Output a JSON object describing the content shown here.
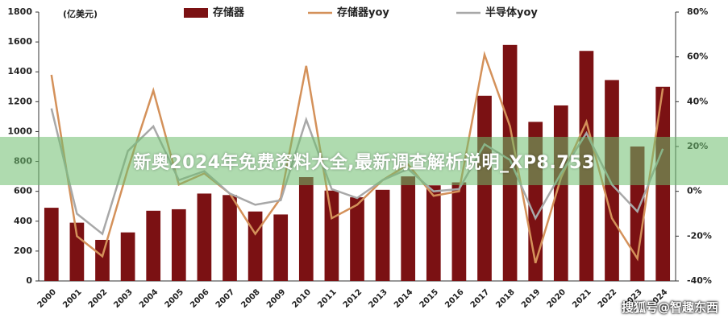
{
  "chart_data": {
    "type": "bar_line",
    "y_unit_label": "(亿美元)",
    "categories": [
      "2000",
      "2001",
      "2002",
      "2003",
      "2004",
      "2005",
      "2006",
      "2007",
      "2008",
      "2009",
      "2010",
      "2011",
      "2012",
      "2013",
      "2014",
      "2015",
      "2016",
      "2017",
      "2018",
      "2019",
      "2020",
      "2021",
      "2022",
      "2023",
      "2024"
    ],
    "series": [
      {
        "name": "存储器",
        "type": "bar",
        "color": "#7b1113",
        "axis": "y",
        "values": [
          490,
          390,
          275,
          325,
          470,
          480,
          585,
          575,
          465,
          445,
          695,
          605,
          560,
          610,
          700,
          640,
          660,
          1240,
          1580,
          1065,
          1175,
          1540,
          1345,
          900,
          1300
        ]
      },
      {
        "name": "存储器yoy",
        "type": "line",
        "color": "#d4915a",
        "axis": "y2",
        "values": [
          52,
          -20,
          -29,
          10,
          45,
          3,
          8,
          -1,
          -19,
          -3,
          56,
          -12,
          -6,
          5,
          12,
          -2,
          0,
          61,
          29,
          -32,
          6,
          31,
          -12,
          -30,
          46
        ]
      },
      {
        "name": "半导体yoy",
        "type": "line",
        "color": "#a8a8a8",
        "axis": "y2",
        "values": [
          37,
          -10,
          -19,
          18,
          29,
          5,
          9,
          -1,
          -6,
          -4,
          32,
          1,
          -3,
          5,
          10,
          0,
          1,
          21,
          14,
          -12,
          8,
          26,
          3,
          -9,
          19
        ]
      }
    ],
    "ylim": [
      0,
      1800
    ],
    "yticks": [
      0,
      200,
      400,
      600,
      800,
      1000,
      1200,
      1400,
      1600,
      1800
    ],
    "y2lim": [
      -40,
      80
    ],
    "y2ticks": [
      {
        "value": -40,
        "label": "-40%"
      },
      {
        "value": -20,
        "label": "-20%"
      },
      {
        "value": 0,
        "label": "0%"
      },
      {
        "value": 20,
        "label": "20%"
      },
      {
        "value": 40,
        "label": "40%"
      },
      {
        "value": 60,
        "label": "60%"
      },
      {
        "value": 80,
        "label": "80%"
      }
    ],
    "legend": "top"
  },
  "overlay": {
    "banner": "新奥2024年免费资料大全,最新调查解析说明_XP8.753",
    "watermark": "搜狐号@智趣东西"
  }
}
